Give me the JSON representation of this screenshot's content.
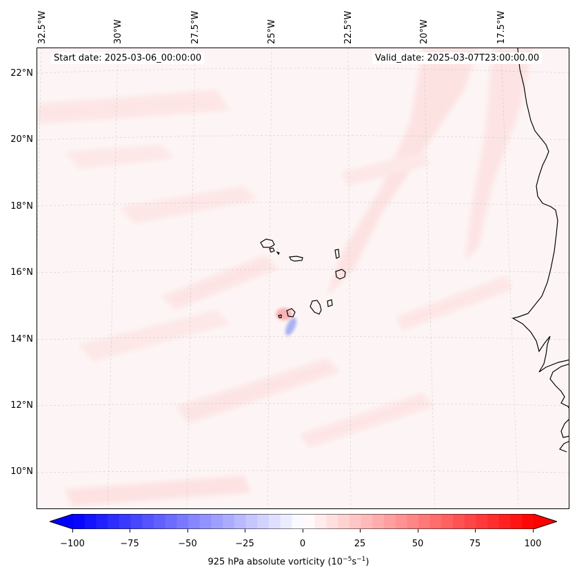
{
  "header": {
    "start_date": "Start date: 2025-03-06_00:00:00",
    "valid_date": "Valid_date: 2025-03-07T23:00:00.00"
  },
  "map": {
    "longitude_labels": [
      "32.5°W",
      "30°W",
      "27.5°W",
      "25°W",
      "22.5°W",
      "20°W",
      "17.5°W"
    ],
    "latitude_labels": [
      "22°N",
      "20°N",
      "18°N",
      "16°N",
      "14°N",
      "12°N",
      "10°N"
    ],
    "field": "925 hPa absolute vorticity",
    "background_color": "#fdf5f5",
    "coastline_color": "#000000"
  },
  "colorbar": {
    "ticks": [
      "−100",
      "−75",
      "−50",
      "−25",
      "0",
      "25",
      "50",
      "75",
      "100"
    ],
    "label_prefix": "925 hPa absolute vorticity (10",
    "label_exp1": "−5",
    "label_mid": "s",
    "label_exp2": "−1",
    "label_suffix": ")",
    "min": -100,
    "max": 100,
    "low_color": "#0000ff",
    "mid_color": "#ffffff",
    "high_color": "#ff0000",
    "levels": 40
  }
}
